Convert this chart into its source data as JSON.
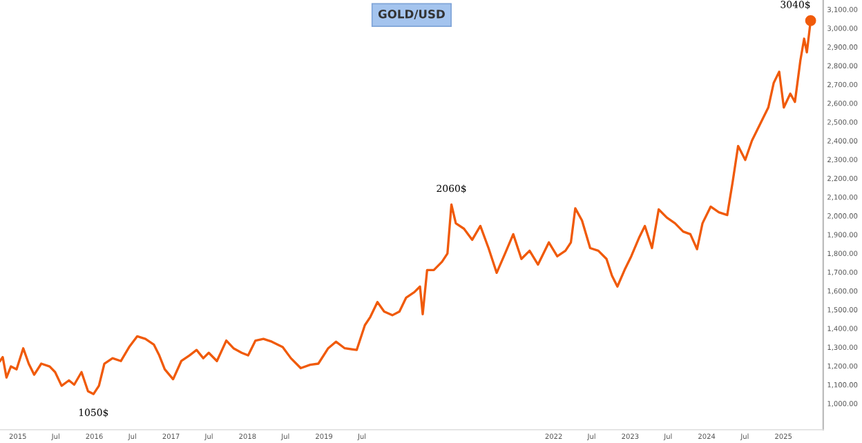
{
  "chart_data": {
    "type": "line",
    "title": "GOLD/USD",
    "x": [
      "2014-10-08",
      "2014-10-21",
      "2014-11-08",
      "2014-11-29",
      "2014-12-26",
      "2015-01-27",
      "2015-02-22",
      "2015-03-20",
      "2015-04-23",
      "2015-06-02",
      "2015-06-28",
      "2015-07-29",
      "2015-09-02",
      "2015-09-27",
      "2015-11-01",
      "2015-12-02",
      "2015-12-28",
      "2016-01-23",
      "2016-02-18",
      "2016-03-28",
      "2016-05-07",
      "2016-06-15",
      "2016-07-24",
      "2016-09-01",
      "2016-10-11",
      "2016-11-06",
      "2016-12-02",
      "2017-01-11",
      "2017-02-19",
      "2017-03-30",
      "2017-05-03",
      "2017-06-04",
      "2017-06-30",
      "2017-08-08",
      "2017-09-22",
      "2017-10-26",
      "2017-12-04",
      "2018-01-04",
      "2018-02-08",
      "2018-03-18",
      "2018-04-27",
      "2018-06-18",
      "2018-07-27",
      "2018-09-12",
      "2018-10-27",
      "2018-12-05",
      "2019-01-21",
      "2019-02-27",
      "2019-04-10",
      "2019-06-06",
      "2019-07-15",
      "2019-08-10",
      "2019-09-13",
      "2019-10-15",
      "2019-11-23",
      "2019-12-27",
      "2020-01-28",
      "2020-03-07",
      "2020-04-03",
      "2020-04-16",
      "2020-05-07",
      "2020-06-08",
      "2020-07-17",
      "2020-08-12",
      "2020-08-31",
      "2020-09-21",
      "2020-10-30",
      "2020-12-08",
      "2021-01-16",
      "2021-02-24",
      "2021-04-04",
      "2021-05-14",
      "2021-06-22",
      "2021-07-31",
      "2021-09-08",
      "2021-10-18",
      "2021-12-09",
      "2022-01-18",
      "2022-02-26",
      "2022-03-24",
      "2022-04-14",
      "2022-05-16",
      "2022-06-24",
      "2022-08-02",
      "2022-09-10",
      "2022-10-06",
      "2022-11-01",
      "2022-12-05",
      "2023-01-06",
      "2023-02-14",
      "2023-03-12",
      "2023-04-15",
      "2023-05-17",
      "2023-06-25",
      "2023-08-03",
      "2023-09-11",
      "2023-10-15",
      "2023-11-16",
      "2023-12-12",
      "2024-01-20",
      "2024-02-28",
      "2024-04-08",
      "2024-05-04",
      "2024-05-30",
      "2024-07-03",
      "2024-08-04",
      "2024-09-12",
      "2024-10-21",
      "2024-11-16",
      "2024-12-12",
      "2025-01-03",
      "2025-02-03",
      "2025-02-25",
      "2025-03-23",
      "2025-04-10",
      "2025-04-23",
      "2025-05-11"
    ],
    "series": [
      {
        "color": "#f05a0a",
        "values": [
          1226,
          1247,
          1138,
          1197,
          1182,
          1294,
          1212,
          1153,
          1212,
          1197,
          1167,
          1094,
          1123,
          1100,
          1167,
          1065,
          1050,
          1094,
          1212,
          1241,
          1226,
          1300,
          1358,
          1344,
          1314,
          1256,
          1182,
          1129,
          1226,
          1256,
          1285,
          1241,
          1270,
          1226,
          1335,
          1294,
          1270,
          1256,
          1335,
          1344,
          1329,
          1300,
          1241,
          1188,
          1206,
          1212,
          1294,
          1329,
          1294,
          1285,
          1417,
          1461,
          1540,
          1490,
          1470,
          1490,
          1564,
          1593,
          1623,
          1476,
          1711,
          1711,
          1755,
          1799,
          2060,
          1960,
          1931,
          1872,
          1946,
          1828,
          1696,
          1799,
          1902,
          1770,
          1814,
          1740,
          1858,
          1784,
          1814,
          1858,
          2040,
          1975,
          1828,
          1814,
          1770,
          1681,
          1623,
          1711,
          1784,
          1887,
          1946,
          1828,
          2034,
          1990,
          1960,
          1916,
          1902,
          1822,
          1960,
          2049,
          2019,
          2004,
          2181,
          2372,
          2298,
          2401,
          2489,
          2577,
          2709,
          2768,
          2577,
          2651,
          2607,
          2827,
          2944,
          2871,
          3040
        ]
      },
      {
        "type": "scatter",
        "color": "#f05a0a",
        "x": [
          "2025-05-11"
        ],
        "values": [
          3040
        ]
      }
    ],
    "annotations": [
      {
        "text": "1050$",
        "x": "2015-12-28",
        "y": 1050
      },
      {
        "text": "2060$",
        "x": "2020-08-31",
        "y": 2060
      },
      {
        "text": "3040$",
        "x": "2025-05-11",
        "y": 3040
      }
    ],
    "xlim": [
      "2014-10-08",
      "2025-07-10"
    ],
    "xticks": [
      {
        "value": "2015-01-01",
        "label": "2015"
      },
      {
        "value": "2015-07-01",
        "label": "Jul"
      },
      {
        "value": "2016-01-01",
        "label": "2016"
      },
      {
        "value": "2016-07-01",
        "label": "Jul"
      },
      {
        "value": "2017-01-01",
        "label": "2017"
      },
      {
        "value": "2017-07-01",
        "label": "Jul"
      },
      {
        "value": "2018-01-01",
        "label": "2018"
      },
      {
        "value": "2018-07-01",
        "label": "Jul"
      },
      {
        "value": "2019-01-01",
        "label": "2019"
      },
      {
        "value": "2019-07-01",
        "label": "Jul"
      },
      {
        "value": "2022-01-01",
        "label": "2022"
      },
      {
        "value": "2022-07-01",
        "label": "Jul"
      },
      {
        "value": "2023-01-01",
        "label": "2023"
      },
      {
        "value": "2023-07-01",
        "label": "Jul"
      },
      {
        "value": "2024-01-01",
        "label": "2024"
      },
      {
        "value": "2024-07-01",
        "label": "Jul"
      },
      {
        "value": "2025-01-01",
        "label": "2025"
      }
    ],
    "ylim": [
      860,
      3150
    ],
    "yticks": [
      {
        "value": 1000,
        "label": "1,000.00"
      },
      {
        "value": 1100,
        "label": "1,100.00"
      },
      {
        "value": 1200,
        "label": "1,200.00"
      },
      {
        "value": 1300,
        "label": "1,300.00"
      },
      {
        "value": 1400,
        "label": "1,400.00"
      },
      {
        "value": 1500,
        "label": "1,500.00"
      },
      {
        "value": 1600,
        "label": "1,600.00"
      },
      {
        "value": 1700,
        "label": "1,700.00"
      },
      {
        "value": 1800,
        "label": "1,800.00"
      },
      {
        "value": 1900,
        "label": "1,900.00"
      },
      {
        "value": 2000,
        "label": "2,000.00"
      },
      {
        "value": 2100,
        "label": "2,100.00"
      },
      {
        "value": 2200,
        "label": "2,200.00"
      },
      {
        "value": 2300,
        "label": "2,300.00"
      },
      {
        "value": 2400,
        "label": "2,400.00"
      },
      {
        "value": 2500,
        "label": "2,500.00"
      },
      {
        "value": 2600,
        "label": "2,600.00"
      },
      {
        "value": 2700,
        "label": "2,700.00"
      },
      {
        "value": 2800,
        "label": "2,800.00"
      },
      {
        "value": 2900,
        "label": "2,900.00"
      },
      {
        "value": 3000,
        "label": "3,000.00"
      },
      {
        "value": 3100,
        "label": "3,100.00"
      }
    ],
    "grid": false,
    "legend": false
  }
}
